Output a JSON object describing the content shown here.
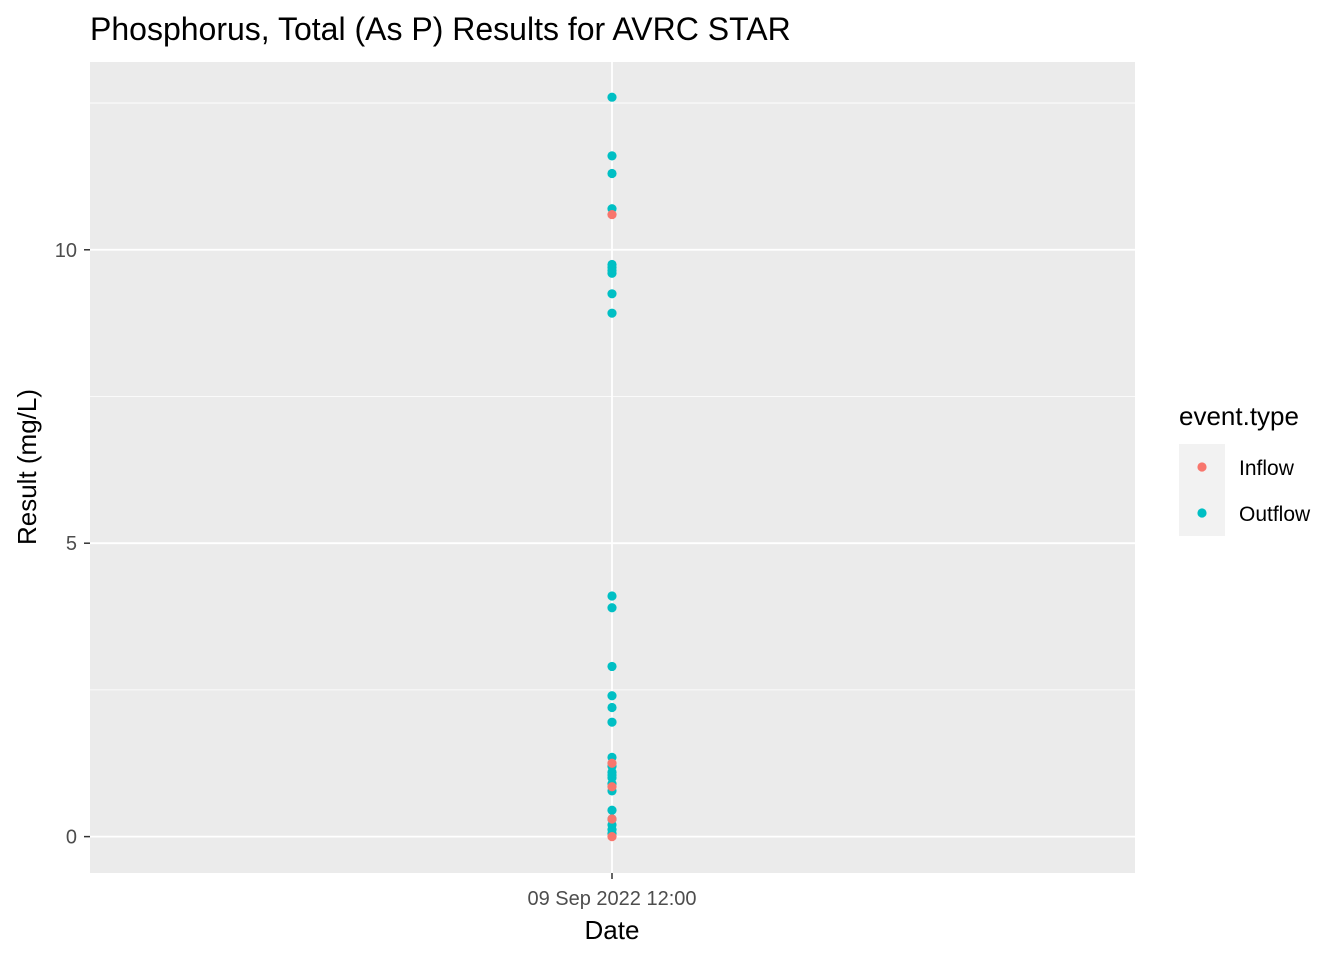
{
  "chart_data": {
    "type": "scatter",
    "title": "Phosphorus, Total (As P) Results for AVRC STAR",
    "xlabel": "Date",
    "ylabel": "Result (mg/L)",
    "x_tick_labels": [
      "09 Sep 2022 12:00"
    ],
    "y_ticks": [
      0,
      5,
      10
    ],
    "ylim": [
      -0.62,
      13.2
    ],
    "grid": true,
    "legend": {
      "title": "event.type",
      "position": "right",
      "entries": [
        {
          "name": "Inflow",
          "color": "#F8766D"
        },
        {
          "name": "Outflow",
          "color": "#00BFC4"
        }
      ]
    },
    "series": [
      {
        "name": "Outflow",
        "color": "#00BFC4",
        "x": "09 Sep 2022 12:00",
        "values": [
          12.6,
          11.6,
          11.3,
          10.7,
          9.75,
          9.7,
          9.65,
          9.6,
          9.25,
          8.92,
          4.1,
          3.9,
          2.9,
          2.4,
          2.2,
          1.95,
          1.35,
          1.2,
          1.1,
          1.05,
          1.0,
          0.9,
          0.78,
          0.45,
          0.3,
          0.2,
          0.12,
          0.05
        ]
      },
      {
        "name": "Inflow",
        "color": "#F8766D",
        "x": "09 Sep 2022 12:00",
        "values": [
          10.6,
          1.25,
          0.85,
          0.3,
          0.0
        ]
      }
    ]
  }
}
